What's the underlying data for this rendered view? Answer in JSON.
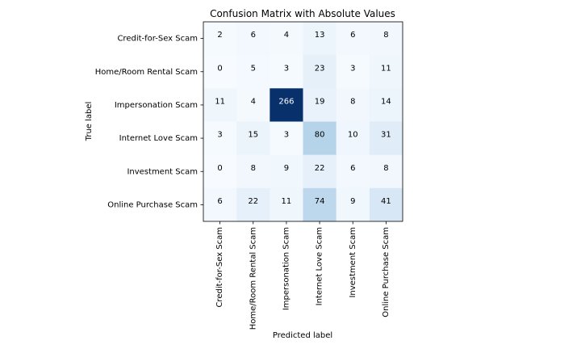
{
  "chart_data": {
    "type": "heatmap",
    "title": "Confusion Matrix with Absolute Values",
    "xlabel": "Predicted label",
    "ylabel": "True label",
    "x_categories": [
      "Credit-for-Sex Scam",
      "Home/Room Rental Scam",
      "Impersonation Scam",
      "Internet Love Scam",
      "Investment Scam",
      "Online Purchase Scam"
    ],
    "y_categories": [
      "Credit-for-Sex Scam",
      "Home/Room Rental Scam",
      "Impersonation Scam",
      "Internet Love Scam",
      "Investment Scam",
      "Online Purchase Scam"
    ],
    "values": [
      [
        2,
        6,
        4,
        13,
        6,
        8
      ],
      [
        0,
        5,
        3,
        23,
        3,
        11
      ],
      [
        11,
        4,
        266,
        19,
        8,
        14
      ],
      [
        3,
        15,
        3,
        80,
        10,
        31
      ],
      [
        0,
        8,
        9,
        22,
        6,
        8
      ],
      [
        6,
        22,
        11,
        74,
        9,
        41
      ]
    ],
    "colormap": "Blues",
    "value_range": [
      0,
      266
    ],
    "grid": false
  }
}
